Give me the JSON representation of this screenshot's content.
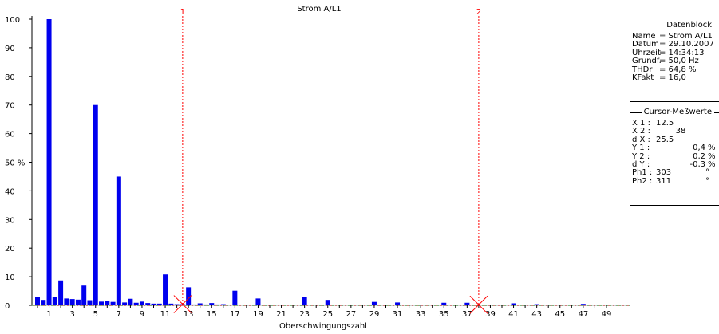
{
  "chart_data": {
    "type": "bar",
    "title": "Strom A/L1",
    "xlabel": "Oberschwingungszahl",
    "ylabel": "",
    "ylim": [
      0,
      100
    ],
    "xlim": [
      0,
      50
    ],
    "yticks": [
      0,
      10,
      20,
      30,
      40,
      50,
      60,
      70,
      80,
      90,
      100
    ],
    "ytick_labels": [
      "0",
      "10",
      "20",
      "30",
      "40",
      "50 %",
      "60",
      "70",
      "80",
      "90",
      "100"
    ],
    "xticks": [
      1,
      3,
      5,
      7,
      9,
      11,
      13,
      15,
      17,
      19,
      21,
      23,
      25,
      27,
      29,
      31,
      33,
      35,
      37,
      39,
      41,
      43,
      45,
      47,
      49
    ],
    "grid": false,
    "bar_color": "#0000ee",
    "cursor_color": "#ff0000",
    "zero_line_color": "#00aa00",
    "orders": [
      0,
      1,
      2,
      3,
      4,
      5,
      6,
      7,
      8,
      9,
      10,
      11,
      12,
      13,
      14,
      15,
      16,
      17,
      18,
      19,
      20,
      21,
      22,
      23,
      24,
      25,
      26,
      27,
      28,
      29,
      30,
      31,
      32,
      33,
      34,
      35,
      36,
      37,
      38,
      39,
      40,
      41,
      42,
      43,
      44,
      45,
      46,
      47,
      48,
      49,
      50
    ],
    "main_values": [
      2.8,
      100,
      8.7,
      2.2,
      6.9,
      70,
      1.5,
      45,
      2.3,
      1.3,
      0.6,
      10.8,
      0.4,
      6.3,
      0.7,
      0.8,
      0.4,
      5.1,
      0.2,
      2.4,
      0.2,
      0.2,
      0.2,
      2.8,
      0.2,
      1.9,
      0.2,
      0.2,
      0.2,
      1.2,
      0.2,
      1.0,
      0.2,
      0.2,
      0.2,
      0.9,
      0.2,
      0.9,
      0.2,
      0.2,
      0.2,
      0.7,
      0.2,
      0.4,
      0.2,
      0.2,
      0.2,
      0.5,
      0.2,
      0.2,
      0.1
    ],
    "interharmonic_values": [
      1.9,
      2.8,
      2.4,
      2.0,
      1.8,
      1.3,
      1.2,
      1.0,
      0.9,
      0.8,
      0.6,
      0.6,
      0.4,
      0.3,
      0.3,
      0.3,
      0.2,
      0.2,
      0.2,
      0.2,
      0.2,
      0.2,
      0.2,
      0.2,
      0.2,
      0.2,
      0.2,
      0.2,
      0.2,
      0.2,
      0.2,
      0.2,
      0.2,
      0.2,
      0.2,
      0.2,
      0.2,
      0.2,
      0.2,
      0.2,
      0.2,
      0.2,
      0.2,
      0.2,
      0.2,
      0.2,
      0.2,
      0.2,
      0.2,
      0.2
    ],
    "cursors": [
      {
        "label": "1",
        "x": 12.5,
        "y": 0.4
      },
      {
        "label": "2",
        "x": 38,
        "y": 0.2
      }
    ]
  },
  "datablock": {
    "title": "Datenblock",
    "rows": [
      {
        "k": "Name",
        "v": "= Strom A/L1"
      },
      {
        "k": "Datum",
        "v": "= 29.10.2007"
      },
      {
        "k": "Uhrzeit",
        "v": "= 14:34:13"
      },
      {
        "k": "Grundf.",
        "v": "= 50,0 Hz"
      },
      {
        "k": "THDr",
        "v": "= 64,8 %"
      },
      {
        "k": "KFakt",
        "v": "= 16,0"
      }
    ]
  },
  "cursorblock": {
    "title": "Cursor-Meßwerte",
    "rows": [
      {
        "k": "X 1 :",
        "v": "12.5",
        "u": ""
      },
      {
        "k": "X 2 :",
        "v": "38",
        "u": ""
      },
      {
        "k": "d X :",
        "v": "25.5",
        "u": ""
      },
      {
        "k": "Y 1 :",
        "v": "0,4",
        "u": "%"
      },
      {
        "k": "Y 2 :",
        "v": "0,2",
        "u": "%"
      },
      {
        "k": "d Y :",
        "v": "-0,3",
        "u": "%"
      },
      {
        "k": "Ph1 :",
        "v": "303",
        "u": "°"
      },
      {
        "k": "Ph2 :",
        "v": "311",
        "u": "°"
      }
    ]
  }
}
